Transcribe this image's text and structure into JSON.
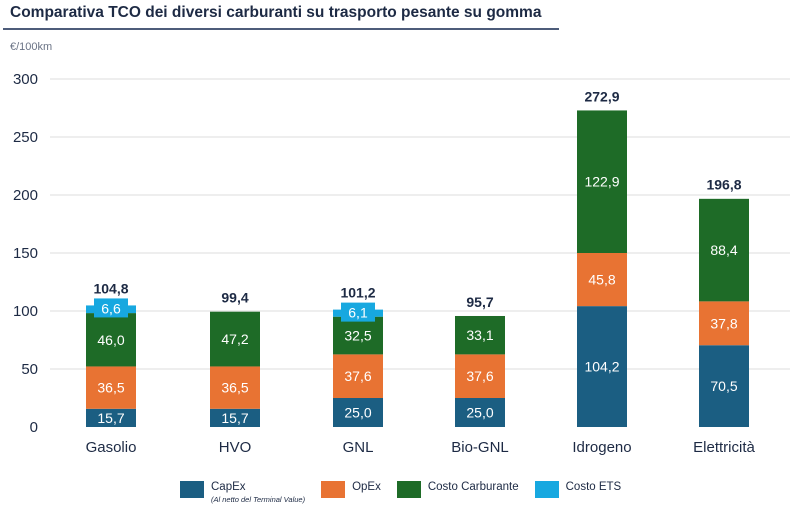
{
  "chart_data": {
    "type": "bar",
    "stacked": true,
    "title": "Comparativa TCO dei diversi carburanti su trasporto pesante su gomma",
    "ylabel": "€/100km",
    "xlabel": "",
    "ylim": [
      0,
      300
    ],
    "yticks": [
      0,
      50,
      100,
      150,
      200,
      250,
      300
    ],
    "ytick_labels": [
      "0",
      "50",
      "100",
      "150",
      "200",
      "250",
      "300"
    ],
    "grid": true,
    "legend_position": "bottom",
    "categories": [
      "Gasolio",
      "HVO",
      "GNL",
      "Bio-GNL",
      "Idrogeno",
      "Elettricità"
    ],
    "series": [
      {
        "name": "CapEx",
        "note": "(Al netto del Terminal Value)",
        "color": "#1b5e82",
        "values": [
          15.7,
          15.7,
          25.0,
          25.0,
          104.2,
          70.5
        ],
        "labels": [
          "15,7",
          "15,7",
          "25,0",
          "25,0",
          "104,2",
          "70,5"
        ]
      },
      {
        "name": "OpEx",
        "note": "",
        "color": "#e87333",
        "values": [
          36.5,
          36.5,
          37.6,
          37.6,
          45.8,
          37.8
        ],
        "labels": [
          "36,5",
          "36,5",
          "37,6",
          "37,6",
          "45,8",
          "37,8"
        ]
      },
      {
        "name": "Costo Carburante",
        "note": "",
        "color": "#1e6b27",
        "values": [
          46.0,
          47.2,
          32.5,
          33.1,
          122.9,
          88.4
        ],
        "labels": [
          "46,0",
          "47,2",
          "32,5",
          "33,1",
          "122,9",
          "88,4"
        ]
      },
      {
        "name": "Costo ETS",
        "note": "",
        "color": "#17a8e0",
        "values": [
          6.6,
          0,
          6.1,
          0,
          0,
          0
        ],
        "labels": [
          "6,6",
          "",
          "6,1",
          "",
          "",
          ""
        ]
      }
    ],
    "totals": [
      104.8,
      99.4,
      101.2,
      95.7,
      272.9,
      196.8
    ],
    "total_labels": [
      "104,8",
      "99,4",
      "101,2",
      "95,7",
      "272,9",
      "196,8"
    ]
  }
}
